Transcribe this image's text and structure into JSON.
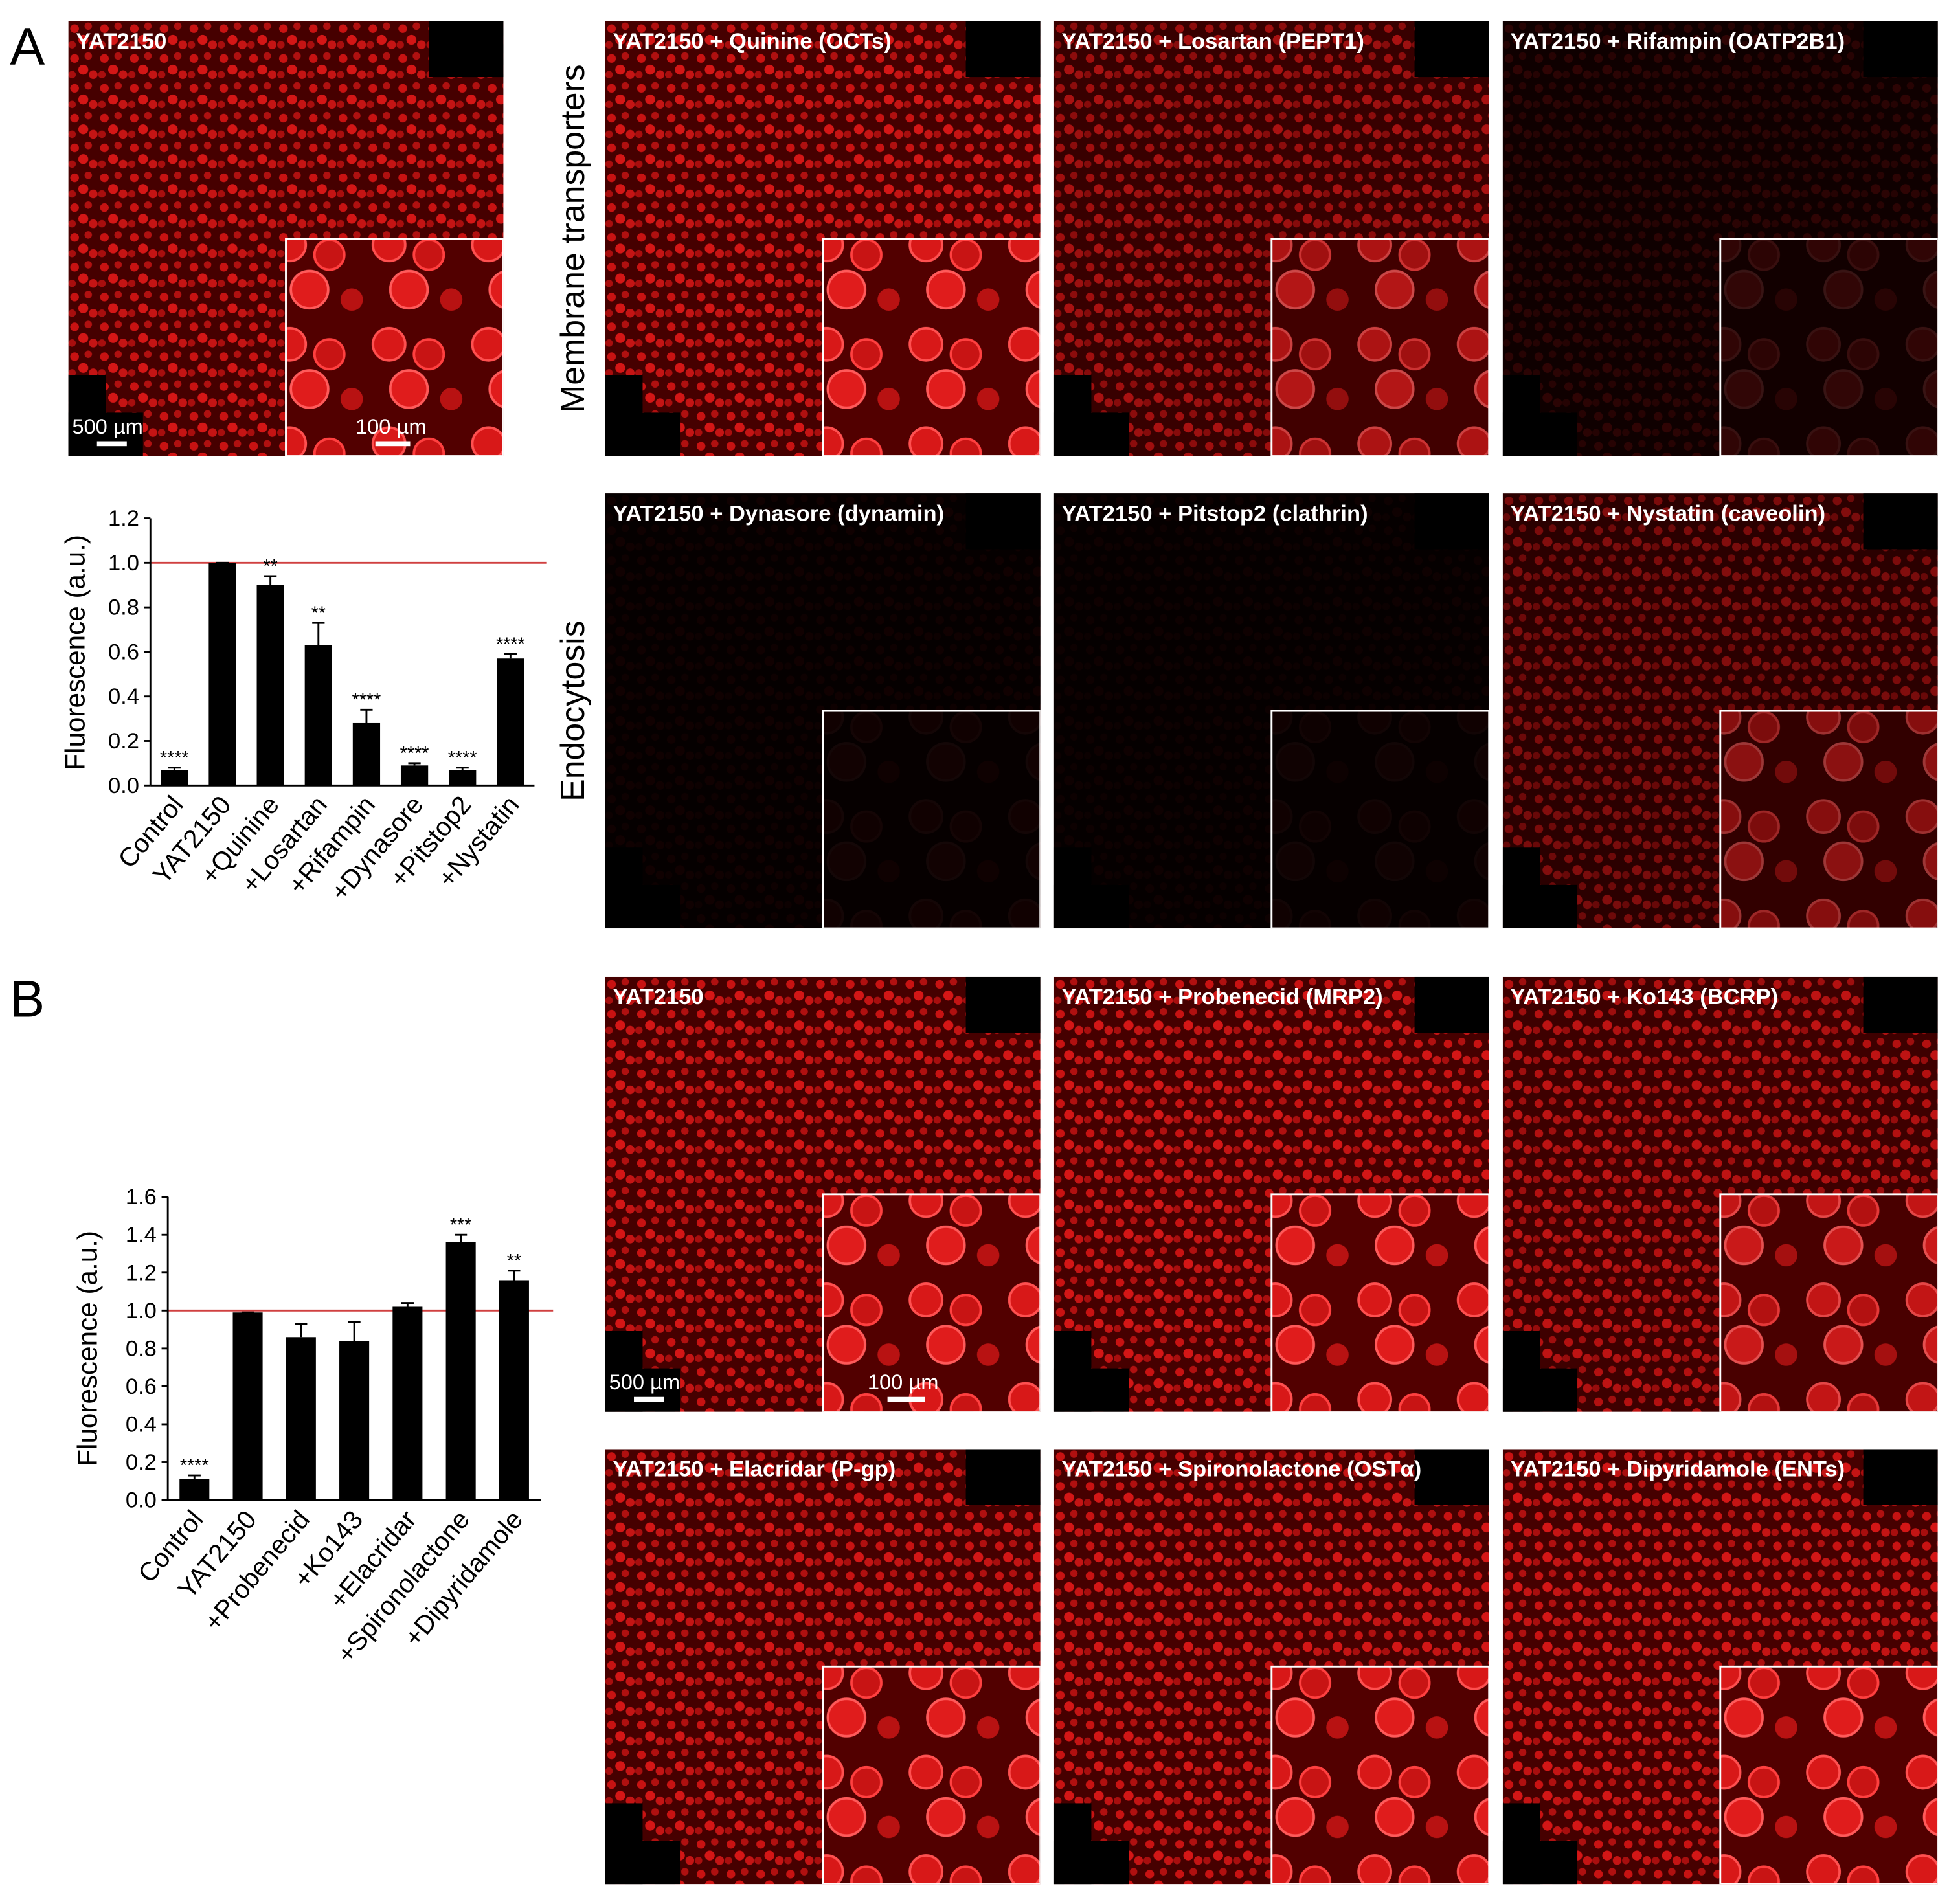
{
  "panel_labels": [
    "A",
    "B"
  ],
  "row_labels": [
    "Membrane transporters",
    "Endocytosis"
  ],
  "images": [
    {
      "title": "YAT2150",
      "scale_bars": [
        "500 µm",
        "100 µm"
      ]
    },
    {
      "title": "YAT2150 + Quinine (OCTs)"
    },
    {
      "title": "YAT2150 + Losartan (PEPT1)"
    },
    {
      "title": "YAT2150 + Rifampin (OATP2B1)"
    },
    {
      "title": "YAT2150 + Dynasore (dynamin)"
    },
    {
      "title": "YAT2150 + Pitstop2 (clathrin)"
    },
    {
      "title": "YAT2150 + Nystatin (caveolin)"
    },
    {
      "title": "YAT2150",
      "scale_bars": [
        "500 µm",
        "100 µm"
      ]
    },
    {
      "title": "YAT2150 + Probenecid (MRP2)"
    },
    {
      "title": "YAT2150 + Ko143 (BCRP)"
    },
    {
      "title": "YAT2150 + Elacridar (P-gp)"
    },
    {
      "title": "YAT2150 + Spironolactone (OSTα)"
    },
    {
      "title": "YAT2150 + Dipyridamole (ENTs)"
    }
  ],
  "chart_data": [
    {
      "type": "bar",
      "y_label": "Fluorescence (a.u.)",
      "categories": [
        "Control",
        "YAT2150",
        "+Quinine",
        "+Losartan",
        "+Rifampin",
        "+Dynasore",
        "+Pitstop2",
        "+Nystatin"
      ],
      "values": [
        0.07,
        1.0,
        0.9,
        0.63,
        0.28,
        0.09,
        0.07,
        0.57
      ],
      "errors": [
        0.01,
        0.0,
        0.04,
        0.1,
        0.06,
        0.01,
        0.01,
        0.02
      ],
      "annotations": [
        "****",
        null,
        "**",
        "**",
        "****",
        "****",
        "****",
        "****"
      ],
      "color": "#000000",
      "reference_line": {
        "value": 1,
        "color": "#d04040"
      },
      "ylim": [
        0,
        1.2
      ],
      "yticks": [
        {
          "value": 0,
          "label": "0.0"
        },
        0.2,
        0.4,
        0.6,
        0.8,
        {
          "value": 1,
          "label": "1.0"
        },
        1.2
      ]
    },
    {
      "type": "bar",
      "y_label": "Fluorescence (a.u.)",
      "categories": [
        "Control",
        "YAT2150",
        "+Probenecid",
        "+Ko143",
        "+Elacridar",
        "+Spironolactone",
        "+Dipyridamole"
      ],
      "values": [
        0.11,
        0.99,
        0.86,
        0.84,
        1.02,
        1.36,
        1.16
      ],
      "errors": [
        0.02,
        0.0,
        0.07,
        0.1,
        0.02,
        0.04,
        0.05
      ],
      "annotations": [
        "****",
        null,
        null,
        null,
        null,
        "***",
        "**"
      ],
      "color": "#000000",
      "reference_line": {
        "value": 1,
        "color": "#d04040"
      },
      "ylim": [
        0,
        1.6
      ],
      "yticks": [
        {
          "value": 0,
          "label": "0.0"
        },
        0.2,
        0.4,
        0.6,
        0.8,
        {
          "value": 1,
          "label": "1.0"
        },
        1.2,
        1.4,
        1.6
      ]
    }
  ]
}
